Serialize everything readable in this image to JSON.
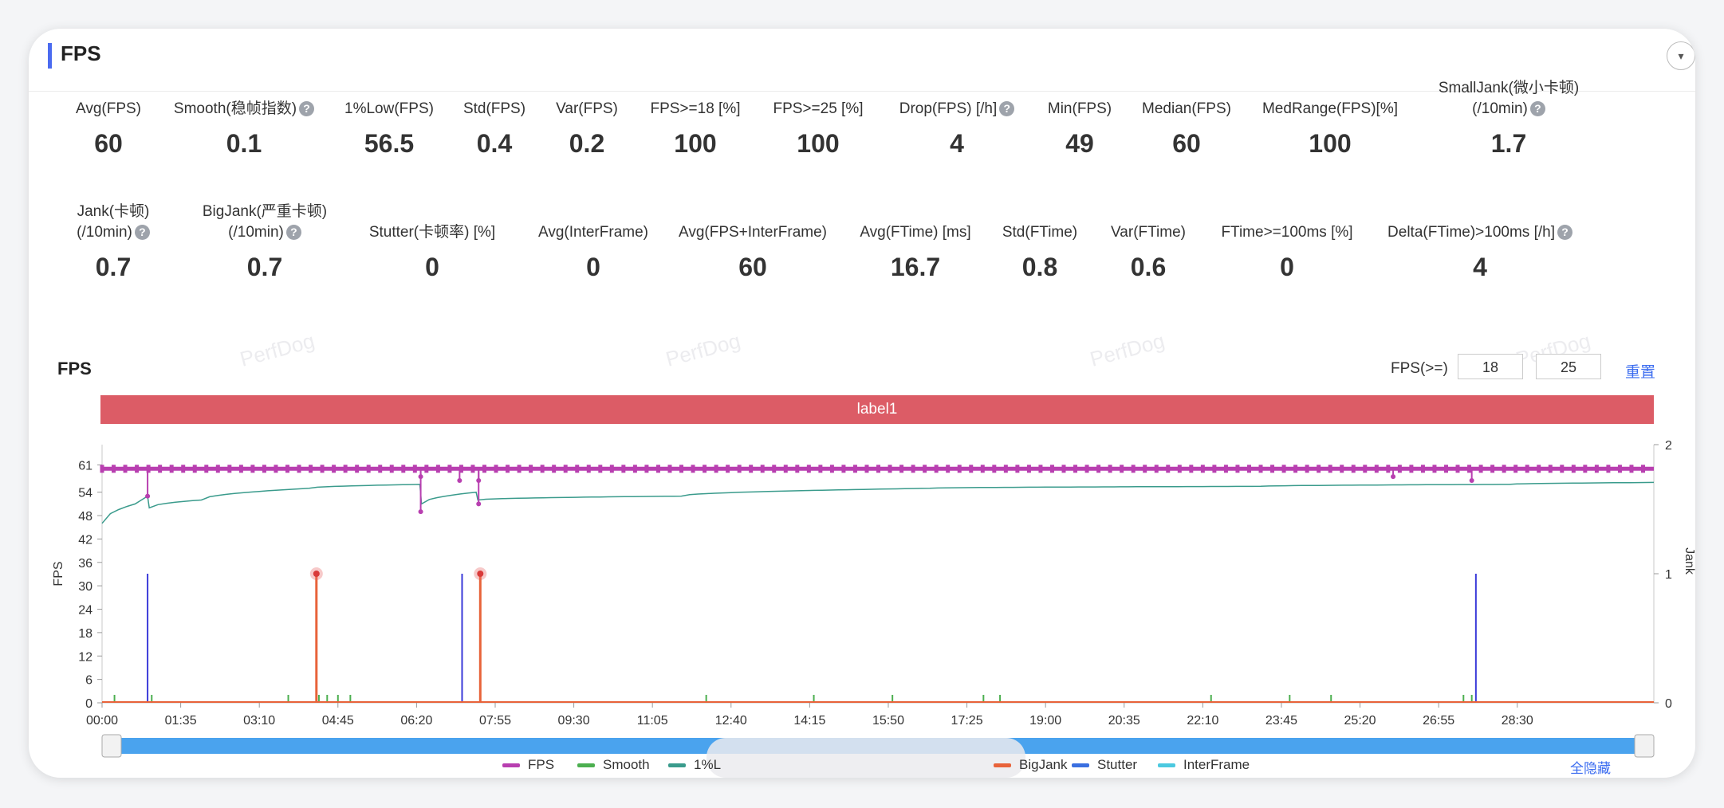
{
  "panel": {
    "title": "FPS",
    "collapse_icon": "▾"
  },
  "metrics_row1": [
    {
      "label": "Avg(FPS)",
      "value": "60",
      "help": false
    },
    {
      "label": "Smooth(稳帧指数)",
      "value": "0.1",
      "help": true
    },
    {
      "label": "1%Low(FPS)",
      "value": "56.5",
      "help": false
    },
    {
      "label": "Std(FPS)",
      "value": "0.4",
      "help": false
    },
    {
      "label": "Var(FPS)",
      "value": "0.2",
      "help": false
    },
    {
      "label": "FPS>=18 [%]",
      "value": "100",
      "help": false
    },
    {
      "label": "FPS>=25 [%]",
      "value": "100",
      "help": false
    },
    {
      "label": "Drop(FPS) [/h]",
      "value": "4",
      "help": true
    },
    {
      "label": "Min(FPS)",
      "value": "49",
      "help": false
    },
    {
      "label": "Median(FPS)",
      "value": "60",
      "help": false
    },
    {
      "label": "MedRange(FPS)[%]",
      "value": "100",
      "help": false
    },
    {
      "label": "SmallJank(微小卡顿)",
      "label2": "(/10min)",
      "value": "1.7",
      "help": true
    }
  ],
  "metrics_row2": [
    {
      "label": "Jank(卡顿)",
      "label2": "(/10min)",
      "value": "0.7",
      "help": true
    },
    {
      "label": "BigJank(严重卡顿)",
      "label2": "(/10min)",
      "value": "0.7",
      "help": true
    },
    {
      "label": "Stutter(卡顿率) [%]",
      "value": "0",
      "help": false
    },
    {
      "label": "Avg(InterFrame)",
      "value": "0",
      "help": false
    },
    {
      "label": "Avg(FPS+InterFrame)",
      "value": "60",
      "help": false
    },
    {
      "label": "Avg(FTime) [ms]",
      "value": "16.7",
      "help": false
    },
    {
      "label": "Std(FTime)",
      "value": "0.8",
      "help": false
    },
    {
      "label": "Var(FTime)",
      "value": "0.6",
      "help": false
    },
    {
      "label": "FTime>=100ms [%]",
      "value": "0",
      "help": false
    },
    {
      "label": "Delta(FTime)>100ms [/h]",
      "value": "4",
      "help": true
    }
  ],
  "help_icon_glyph": "?",
  "watermark": "PerfDog",
  "chart_header": {
    "title": "FPS",
    "fps_threshold_label": "FPS(>=)",
    "threshold_1": "18",
    "threshold_2": "25",
    "reset_label": "重置"
  },
  "label_band": "label1",
  "legend": {
    "items": [
      {
        "name": "FPS",
        "color": "#b83fb0"
      },
      {
        "name": "Smooth",
        "color": "#4caf50"
      },
      {
        "name": "1%L",
        "color": "#3a9b8c"
      },
      {
        "name": "BigJank",
        "color": "#e8633a"
      },
      {
        "name": "Stutter",
        "color": "#3a6fe0"
      },
      {
        "name": "InterFrame",
        "color": "#4cc9e0"
      }
    ],
    "hide_all_label": "全隐藏"
  },
  "chart_data": {
    "type": "line",
    "ylabel": "FPS",
    "y2label": "Jank",
    "y_ticks": [
      0,
      6,
      12,
      18,
      24,
      30,
      36,
      42,
      48,
      54,
      61
    ],
    "y2_ticks": [
      0,
      1,
      2
    ],
    "ylim": [
      0,
      66.6
    ],
    "y2lim": [
      0,
      2
    ],
    "x_ticks": [
      "00:00",
      "01:35",
      "03:10",
      "04:45",
      "06:20",
      "07:55",
      "09:30",
      "11:05",
      "12:40",
      "14:15",
      "15:50",
      "17:25",
      "19:00",
      "20:35",
      "22:10",
      "23:45",
      "25:20",
      "26:55",
      "28:30"
    ],
    "x_range_seconds": [
      0,
      1875
    ],
    "series": [
      {
        "name": "FPS",
        "baseline": 60,
        "dips": [
          {
            "t": 55,
            "v": 53
          },
          {
            "t": 385,
            "v": 49
          },
          {
            "t": 385,
            "v": 58
          },
          {
            "t": 432,
            "v": 57
          },
          {
            "t": 455,
            "v": 51
          },
          {
            "t": 455,
            "v": 57
          },
          {
            "t": 1560,
            "v": 58
          },
          {
            "t": 1655,
            "v": 57
          }
        ]
      },
      {
        "name": "1%L",
        "points": [
          [
            0,
            46
          ],
          [
            40,
            51
          ],
          [
            55,
            53
          ],
          [
            57,
            50
          ],
          [
            120,
            52
          ],
          [
            250,
            55
          ],
          [
            384,
            56
          ],
          [
            386,
            51
          ],
          [
            452,
            54
          ],
          [
            454,
            52
          ],
          [
            700,
            53
          ],
          [
            1000,
            55
          ],
          [
            1400,
            55.5
          ],
          [
            1700,
            56
          ],
          [
            1875,
            56.5
          ]
        ]
      },
      {
        "name": "Jank",
        "spikes": [
          55,
          435,
          1660
        ]
      },
      {
        "name": "BigJank",
        "spikes": [
          259,
          457
        ]
      },
      {
        "name": "Smooth",
        "small_spikes": [
          15,
          60,
          225,
          262,
          272,
          285,
          300,
          730,
          860,
          955,
          1065,
          1085,
          1340,
          1435,
          1485,
          1645,
          1655
        ]
      }
    ]
  }
}
